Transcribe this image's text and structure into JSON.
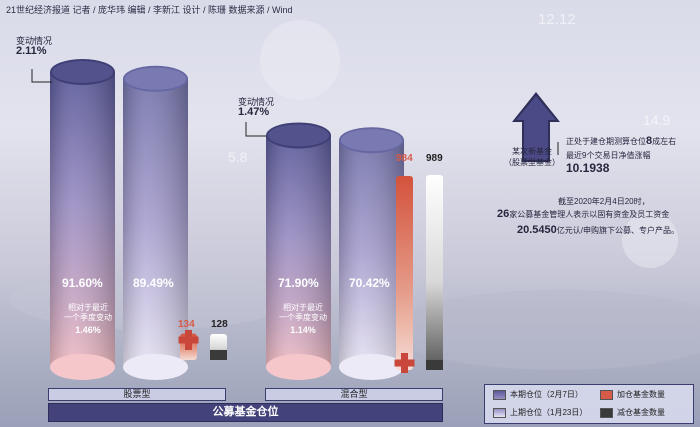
{
  "credits": "21世纪经济报道  记者 / 庞华玮  编辑 / 李新江  设计 / 陈珊  数据来源 / Wind",
  "chart_data": {
    "type": "bar",
    "title": "公募基金仓位",
    "categories": [
      "股票型",
      "混合型"
    ],
    "series": [
      {
        "name": "本期仓位（2月7日）",
        "values": [
          91.6,
          71.9
        ],
        "labels": [
          "91.60%",
          "71.90%"
        ]
      },
      {
        "name": "上期仓位（1月23日）",
        "values": [
          89.49,
          70.42
        ],
        "labels": [
          "89.49%",
          "70.42%"
        ]
      },
      {
        "name": "加仓基金数量",
        "values": [
          134,
          984
        ],
        "labels": [
          "134",
          "984"
        ]
      },
      {
        "name": "减仓基金数量",
        "values": [
          128,
          989
        ],
        "labels": [
          "128",
          "989"
        ]
      }
    ],
    "annotations": [
      {
        "category": "股票型",
        "title": "变动情况",
        "value": "2.11%",
        "sub_lines": [
          "相对于最近",
          "一个季度变动"
        ],
        "sub_value": "1.46%"
      },
      {
        "category": "混合型",
        "title": "变动情况",
        "value": "1.47%",
        "sub_lines": [
          "相对于最近",
          "一个季度变动"
        ],
        "sub_value": "1.14%"
      }
    ]
  },
  "arrow_label": [
    "某次新基金",
    "（股票型基金）"
  ],
  "note1": {
    "line1_pre": "正处于建仓期测算仓位",
    "line1_num": "8",
    "line1_post": "成左右",
    "line2": "最近9个交易日净值涨幅",
    "line3": "10.1938"
  },
  "note2": {
    "line1": "截至2020年2月4日20时，",
    "line2_num": "26",
    "line2_post": "家公募基金管理人表示以固有资金及员工资金",
    "line3_num": "20.5450",
    "line3_post": "亿元认/申购旗下公募、专户产品。"
  },
  "bg_numbers": [
    "12.12",
    "14.9",
    "5.8"
  ],
  "colors": {
    "dark": "#44437a",
    "add": "#d75b49",
    "reduce": "#3a3a3a"
  }
}
